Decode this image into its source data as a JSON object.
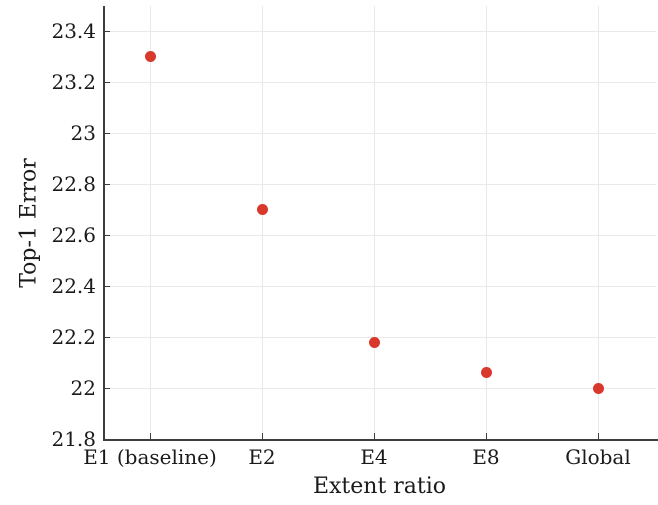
{
  "chart_data": {
    "type": "scatter",
    "title": "",
    "xlabel": "Extent ratio",
    "ylabel": "Top-1 Error",
    "categories": [
      "E1 (baseline)",
      "E2",
      "E4",
      "E8",
      "Global"
    ],
    "values": [
      23.3,
      22.7,
      22.18,
      22.06,
      22.0
    ],
    "ylim": [
      21.8,
      23.5
    ],
    "yticks": [
      21.8,
      22,
      22.2,
      22.4,
      22.6,
      22.8,
      23,
      23.2,
      23.4
    ],
    "ytick_labels": [
      "21.8",
      "22",
      "22.2",
      "22.4",
      "22.6",
      "22.8",
      "23",
      "23.2",
      "23.4"
    ],
    "grid": true,
    "legend": null,
    "marker_color": "#d8392c",
    "axis_color": "#3d3d3d",
    "grid_color": "#e9e9e9",
    "text_color": "#1a1a1a",
    "background": "#ffffff"
  }
}
